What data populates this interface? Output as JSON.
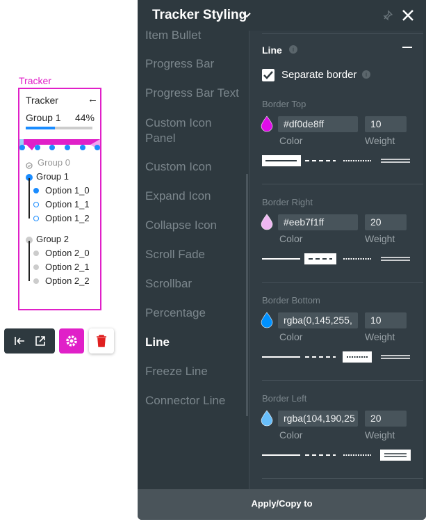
{
  "tracker_widget": {
    "label": "Tracker",
    "header": "Tracker",
    "group_label": "Group 1",
    "progress": {
      "value": 44,
      "label": "44%"
    },
    "groups": [
      {
        "name": "Group 0",
        "options": []
      },
      {
        "name": "Group 1",
        "options": [
          "Option 1_0",
          "Option 1_1",
          "Option 1_2"
        ]
      },
      {
        "name": "Group 2",
        "options": [
          "Option 2_0",
          "Option 2_1",
          "Option 2_2"
        ]
      }
    ]
  },
  "panel": {
    "title": "Tracker Styling",
    "menu": [
      "Item Bullet",
      "Progress Bar",
      "Progress Bar Text",
      "Custom Icon Panel",
      "Custom Icon",
      "Expand Icon",
      "Collapse Icon",
      "Scroll Fade",
      "Scrollbar",
      "Percentage",
      "Line",
      "Freeze Line",
      "Connector Line"
    ],
    "section_title": "Line",
    "separate_border": "Separate border",
    "color_label": "Color",
    "weight_label": "Weight",
    "borders": [
      {
        "title": "Border Top",
        "color": "#df0de8ff",
        "weight": "10"
      },
      {
        "title": "Border Right",
        "color": "#eeb7f1ff",
        "weight": "20"
      },
      {
        "title": "Border Bottom",
        "color": "rgba(0,145,255,",
        "weight": "10"
      },
      {
        "title": "Border Left",
        "color": "rgba(104,190,25",
        "weight": "20"
      }
    ],
    "footer": "Apply/Copy to"
  }
}
